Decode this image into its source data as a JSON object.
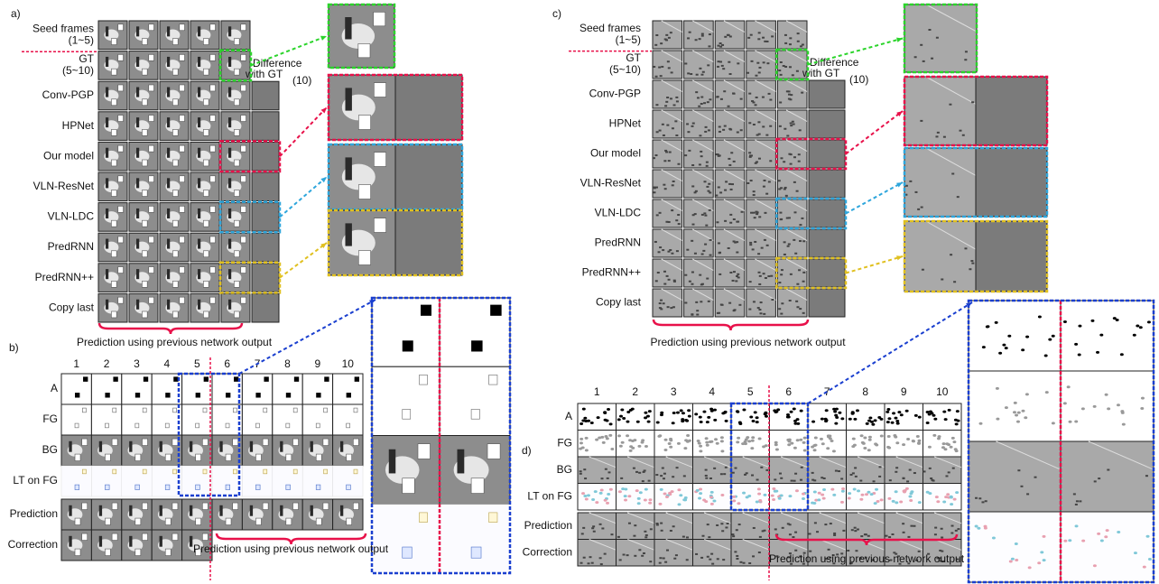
{
  "panels": [
    {
      "label": "a)",
      "kind": "comparison",
      "rows": [
        [
          "Seed frames",
          "(1~5)"
        ],
        [
          "GT",
          "(5~10)"
        ],
        [
          "Conv-PGP"
        ],
        [
          "HPNet"
        ],
        [
          "Our model"
        ],
        [
          "VLN-ResNet"
        ],
        [
          "VLN-LDC"
        ],
        [
          "PredRNN"
        ],
        [
          "PredRNN++"
        ],
        [
          "Copy last"
        ]
      ],
      "difference": {
        "lines": [
          "Difference",
          "with GT"
        ],
        "subscript": "(10)"
      },
      "caption": "Prediction using previous network output"
    },
    {
      "label": "b)",
      "kind": "decomposition",
      "columns": [
        "1",
        "2",
        "3",
        "4",
        "5",
        "6",
        "7",
        "8",
        "9",
        "10"
      ],
      "rows": [
        "A",
        "FG",
        "BG",
        "LT on FG",
        "Prediction",
        "Correction"
      ],
      "caption": "Prediction using previous network output"
    },
    {
      "label": "c)",
      "kind": "comparison",
      "rows": [
        [
          "Seed frames",
          "(1~5)"
        ],
        [
          "GT",
          "(5~10)"
        ],
        [
          "Conv-PGP"
        ],
        [
          "HPNet"
        ],
        [
          "Our model"
        ],
        [
          "VLN-ResNet"
        ],
        [
          "VLN-LDC"
        ],
        [
          "PredRNN"
        ],
        [
          "PredRNN++"
        ],
        [
          "Copy last"
        ]
      ],
      "difference": {
        "lines": [
          "Difference",
          "with GT"
        ],
        "subscript": "(10)"
      },
      "caption": "Prediction using previous network output"
    },
    {
      "label": "d)",
      "kind": "decomposition",
      "columns": [
        "1",
        "2",
        "3",
        "4",
        "5",
        "6",
        "7",
        "8",
        "9",
        "10"
      ],
      "rows": [
        "A",
        "FG",
        "BG",
        "LT on FG",
        "Prediction",
        "Correction"
      ],
      "caption": "Prediction using previous network output"
    }
  ]
}
